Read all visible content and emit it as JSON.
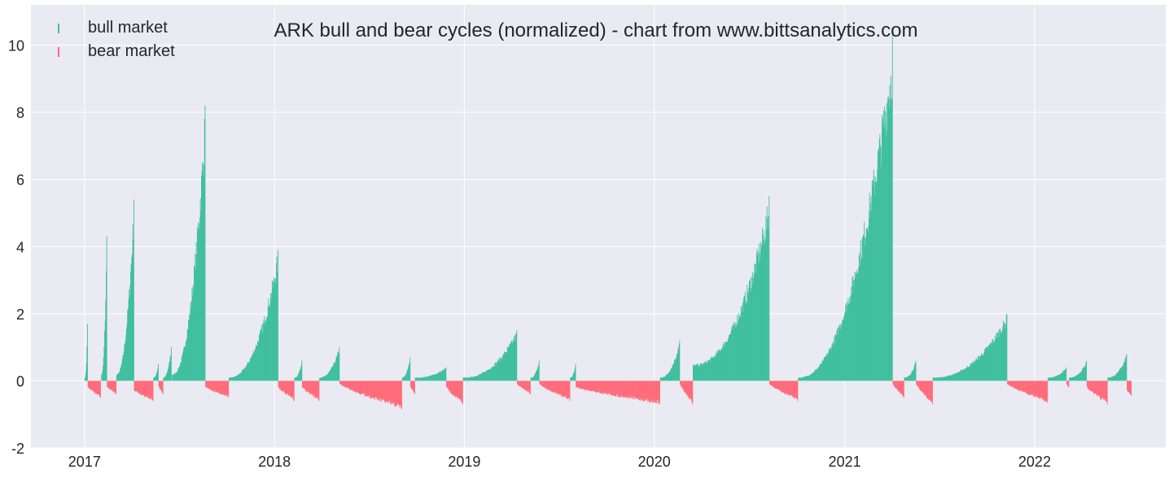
{
  "chart_data": {
    "type": "bar",
    "title": "ARK bull and bear cycles (normalized)  - chart from www.bittsanalytics.com",
    "xlabel": "",
    "ylabel": "",
    "xlim": [
      "2016-09-20",
      "2022-09-10"
    ],
    "ylim": [
      -2,
      11.2
    ],
    "x_ticks": [
      "2017",
      "2018",
      "2019",
      "2020",
      "2021",
      "2022"
    ],
    "y_ticks": [
      -2,
      0,
      2,
      4,
      6,
      8,
      10
    ],
    "grid": true,
    "legend_position": "top-left",
    "series": [
      {
        "name": "bull market",
        "color": "#3fbf9f",
        "segments": [
          {
            "start": "2017-01-01",
            "end": "2017-01-06",
            "peak": 1.7,
            "base": 0.1
          },
          {
            "start": "2017-02-02",
            "end": "2017-02-12",
            "peak": 4.3,
            "base": 0.2
          },
          {
            "start": "2017-03-03",
            "end": "2017-04-05",
            "peak": 5.4,
            "base": 0.2
          },
          {
            "start": "2017-05-13",
            "end": "2017-05-22",
            "peak": 0.5,
            "base": 0.1
          },
          {
            "start": "2017-06-01",
            "end": "2017-06-16",
            "peak": 1.0,
            "base": 0.1
          },
          {
            "start": "2017-06-18",
            "end": "2017-08-20",
            "peak": 8.2,
            "base": 0.2
          },
          {
            "start": "2017-10-05",
            "end": "2018-01-07",
            "peak": 3.9,
            "base": 0.1
          },
          {
            "start": "2018-02-08",
            "end": "2018-02-22",
            "peak": 0.6,
            "base": 0.1
          },
          {
            "start": "2018-03-28",
            "end": "2018-05-05",
            "peak": 1.0,
            "base": 0.1
          },
          {
            "start": "2018-09-03",
            "end": "2018-09-18",
            "peak": 0.7,
            "base": 0.1
          },
          {
            "start": "2018-09-28",
            "end": "2018-11-26",
            "peak": 0.4,
            "base": 0.1
          },
          {
            "start": "2018-12-29",
            "end": "2019-04-11",
            "peak": 1.5,
            "base": 0.1
          },
          {
            "start": "2019-05-08",
            "end": "2019-05-24",
            "peak": 0.6,
            "base": 0.1
          },
          {
            "start": "2019-07-23",
            "end": "2019-08-02",
            "peak": 0.5,
            "base": 0.1
          },
          {
            "start": "2020-01-12",
            "end": "2020-02-18",
            "peak": 1.2,
            "base": 0.1
          },
          {
            "start": "2020-03-15",
            "end": "2020-08-08",
            "peak": 5.5,
            "base": 0.5
          },
          {
            "start": "2020-10-03",
            "end": "2021-04-02",
            "peak": 10.3,
            "base": 0.1
          },
          {
            "start": "2021-04-25",
            "end": "2021-05-17",
            "peak": 0.6,
            "base": 0.1
          },
          {
            "start": "2021-06-19",
            "end": "2021-11-08",
            "peak": 2.0,
            "base": 0.1
          },
          {
            "start": "2022-01-26",
            "end": "2022-03-02",
            "peak": 0.4,
            "base": 0.1
          },
          {
            "start": "2022-03-08",
            "end": "2022-04-10",
            "peak": 0.6,
            "base": 0.1
          },
          {
            "start": "2022-05-21",
            "end": "2022-06-26",
            "peak": 0.8,
            "base": 0.1
          }
        ]
      },
      {
        "name": "bear market",
        "color": "#ff6b7a",
        "segments": [
          {
            "start": "2017-01-07",
            "end": "2017-01-31",
            "peak": 0.5,
            "base": 0.2
          },
          {
            "start": "2017-02-13",
            "end": "2017-03-02",
            "peak": 0.4,
            "base": 0.2
          },
          {
            "start": "2017-04-06",
            "end": "2017-05-12",
            "peak": 0.6,
            "base": 0.3
          },
          {
            "start": "2017-05-23",
            "end": "2017-05-31",
            "peak": 0.4,
            "base": 0.2
          },
          {
            "start": "2017-08-21",
            "end": "2017-10-04",
            "peak": 0.5,
            "base": 0.2
          },
          {
            "start": "2018-01-08",
            "end": "2018-02-07",
            "peak": 0.6,
            "base": 0.2
          },
          {
            "start": "2018-02-23",
            "end": "2018-03-27",
            "peak": 0.6,
            "base": 0.2
          },
          {
            "start": "2018-05-06",
            "end": "2018-09-02",
            "peak": 0.85,
            "base": 0.1
          },
          {
            "start": "2018-09-19",
            "end": "2018-09-27",
            "peak": 0.4,
            "base": 0.2
          },
          {
            "start": "2018-11-27",
            "end": "2018-12-28",
            "peak": 0.7,
            "base": 0.2
          },
          {
            "start": "2019-04-12",
            "end": "2019-05-07",
            "peak": 0.4,
            "base": 0.1
          },
          {
            "start": "2019-05-25",
            "end": "2019-07-22",
            "peak": 0.6,
            "base": 0.1
          },
          {
            "start": "2019-08-03",
            "end": "2020-01-11",
            "peak": 0.7,
            "base": 0.2
          },
          {
            "start": "2020-02-19",
            "end": "2020-03-14",
            "peak": 0.7,
            "base": 0.1
          },
          {
            "start": "2020-08-09",
            "end": "2020-10-02",
            "peak": 0.6,
            "base": 0.1
          },
          {
            "start": "2021-04-03",
            "end": "2021-04-24",
            "peak": 0.5,
            "base": 0.1
          },
          {
            "start": "2021-05-18",
            "end": "2021-06-18",
            "peak": 0.7,
            "base": 0.1
          },
          {
            "start": "2021-11-09",
            "end": "2022-01-25",
            "peak": 0.65,
            "base": 0.1
          },
          {
            "start": "2022-03-03",
            "end": "2022-03-07",
            "peak": 0.2,
            "base": 0.1
          },
          {
            "start": "2022-04-11",
            "end": "2022-05-20",
            "peak": 0.7,
            "base": 0.2
          },
          {
            "start": "2022-06-27",
            "end": "2022-07-05",
            "peak": 0.45,
            "base": 0.3
          }
        ]
      }
    ]
  }
}
